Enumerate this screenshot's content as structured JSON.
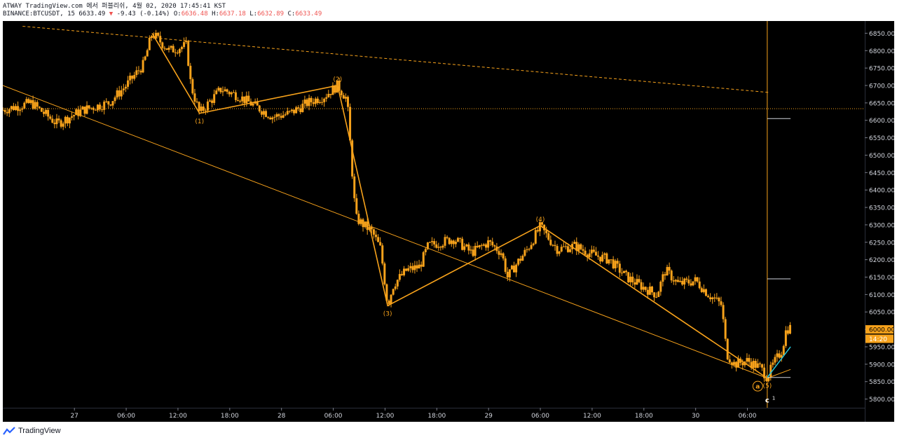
{
  "header": {
    "line1": "ATWAY TradingView.com 에서 퍼블리쉬, 4월 02, 2020 17:45:41 KST",
    "symbol": "BINANCE:BTCUSDT, 15",
    "last": "6633.49",
    "change": "-9.43 (-0.14%)",
    "o_label": "O:",
    "o_val": "6636.48",
    "h_label": "H:",
    "h_val": "6637.18",
    "l_label": "L:",
    "l_val": "6632.89",
    "c_label": "C:",
    "c_val": "6633.49"
  },
  "footer": {
    "brand": "TradingView"
  },
  "colors": {
    "background": "#000000",
    "up": "#f7a21b",
    "down": "#f7a21b",
    "wave": "#f7a21b",
    "axis_bg": "#000000",
    "accent_teal": "#26c6da"
  },
  "chart_data": {
    "type": "candlestick",
    "title": "",
    "ylim": [
      5775,
      6885
    ],
    "y_ticks": [
      5800,
      5850,
      5900,
      5950,
      6000,
      6050,
      6100,
      6150,
      6200,
      6250,
      6300,
      6350,
      6400,
      6450,
      6500,
      6550,
      6600,
      6650,
      6700,
      6750,
      6800,
      6850
    ],
    "y_tick_labels": [
      "5800.00",
      "5850.00",
      "5900.00",
      "5950.00",
      "6000.00",
      "6050.00",
      "6100.00",
      "6150.00",
      "6200.00",
      "6250.00",
      "6300.00",
      "6350.00",
      "6400.00",
      "6450.00",
      "6500.00",
      "6550.00",
      "6600.00",
      "6650.00",
      "6700.00",
      "6750.00",
      "6800.00",
      "6850.00"
    ],
    "x_range_hours": [
      -8.3,
      91.6
    ],
    "x_ticks": [
      {
        "h": 0,
        "label": "27"
      },
      {
        "h": 6,
        "label": "06:00"
      },
      {
        "h": 12,
        "label": "12:00"
      },
      {
        "h": 18,
        "label": "18:00"
      },
      {
        "h": 24,
        "label": "28"
      },
      {
        "h": 30,
        "label": "06:00"
      },
      {
        "h": 36,
        "label": "12:00"
      },
      {
        "h": 42,
        "label": "18:00"
      },
      {
        "h": 48,
        "label": "29"
      },
      {
        "h": 54,
        "label": "06:00"
      },
      {
        "h": 60,
        "label": "12:00"
      },
      {
        "h": 66,
        "label": "18:00"
      },
      {
        "h": 72,
        "label": "30"
      },
      {
        "h": 78,
        "label": "06:00"
      }
    ],
    "price_path": [
      {
        "h": -8.3,
        "p": 6630
      },
      {
        "h": -5,
        "p": 6650
      },
      {
        "h": -2,
        "p": 6590
      },
      {
        "h": 1,
        "p": 6630
      },
      {
        "h": 4,
        "p": 6650
      },
      {
        "h": 6,
        "p": 6700
      },
      {
        "h": 8,
        "p": 6760
      },
      {
        "h": 9,
        "p": 6850
      },
      {
        "h": 11,
        "p": 6800
      },
      {
        "h": 13,
        "p": 6815
      },
      {
        "h": 13.5,
        "p": 6700
      },
      {
        "h": 14.5,
        "p": 6620
      },
      {
        "h": 17,
        "p": 6690
      },
      {
        "h": 19,
        "p": 6670
      },
      {
        "h": 21,
        "p": 6640
      },
      {
        "h": 23,
        "p": 6610
      },
      {
        "h": 25,
        "p": 6620
      },
      {
        "h": 27,
        "p": 6650
      },
      {
        "h": 29,
        "p": 6670
      },
      {
        "h": 30.5,
        "p": 6700
      },
      {
        "h": 31.6,
        "p": 6660
      },
      {
        "h": 32.2,
        "p": 6450
      },
      {
        "h": 32.6,
        "p": 6320
      },
      {
        "h": 33.5,
        "p": 6300
      },
      {
        "h": 34.5,
        "p": 6280
      },
      {
        "h": 35.5,
        "p": 6230
      },
      {
        "h": 36.3,
        "p": 6070
      },
      {
        "h": 37,
        "p": 6130
      },
      {
        "h": 38.5,
        "p": 6170
      },
      {
        "h": 40,
        "p": 6180
      },
      {
        "h": 41,
        "p": 6240
      },
      {
        "h": 42.5,
        "p": 6250
      },
      {
        "h": 44,
        "p": 6260
      },
      {
        "h": 46,
        "p": 6220
      },
      {
        "h": 48,
        "p": 6250
      },
      {
        "h": 49.5,
        "p": 6220
      },
      {
        "h": 50.2,
        "p": 6150
      },
      {
        "h": 51,
        "p": 6180
      },
      {
        "h": 52.5,
        "p": 6230
      },
      {
        "h": 54,
        "p": 6295
      },
      {
        "h": 55,
        "p": 6260
      },
      {
        "h": 56,
        "p": 6230
      },
      {
        "h": 58,
        "p": 6240
      },
      {
        "h": 60,
        "p": 6215
      },
      {
        "h": 62,
        "p": 6200
      },
      {
        "h": 64,
        "p": 6150
      },
      {
        "h": 66,
        "p": 6120
      },
      {
        "h": 67.5,
        "p": 6100
      },
      {
        "h": 68.5,
        "p": 6170
      },
      {
        "h": 70,
        "p": 6130
      },
      {
        "h": 72,
        "p": 6140
      },
      {
        "h": 73.5,
        "p": 6100
      },
      {
        "h": 75,
        "p": 6070
      },
      {
        "h": 75.6,
        "p": 5930
      },
      {
        "h": 76.5,
        "p": 5900
      },
      {
        "h": 78,
        "p": 5910
      },
      {
        "h": 79.5,
        "p": 5890
      },
      {
        "h": 80.3,
        "p": 5862
      },
      {
        "h": 81,
        "p": 5900
      },
      {
        "h": 82,
        "p": 5940
      },
      {
        "h": 82.5,
        "p": 6000
      },
      {
        "h": 83,
        "p": 6005
      }
    ],
    "wave_points": [
      {
        "label": "",
        "h": 9,
        "p": 6850
      },
      {
        "label": "(1)",
        "h": 14.5,
        "p": 6620
      },
      {
        "label": "(2)",
        "h": 30.5,
        "p": 6700
      },
      {
        "label": "(3)",
        "h": 36.3,
        "p": 6068
      },
      {
        "label": "(4)",
        "h": 54,
        "p": 6298
      },
      {
        "label": "(5)",
        "h": 80.3,
        "p": 5860
      }
    ],
    "trendlines": [
      {
        "style": "solid",
        "from": {
          "h": -8.3,
          "p": 6700
        },
        "to": {
          "h": 80.3,
          "p": 5860
        }
      },
      {
        "style": "dashed",
        "from": {
          "h": -6,
          "p": 6870
        },
        "to": {
          "h": 80.5,
          "p": 6680
        }
      },
      {
        "style": "solid",
        "from": {
          "h": 80.3,
          "p": 5860
        },
        "to": {
          "h": 83,
          "p": 5885
        }
      }
    ],
    "horizontal_lines": [
      {
        "style": "dotted",
        "p": 6633.49
      }
    ],
    "marker_segments": [
      {
        "p": 6605,
        "h_from": 80.3,
        "h_to": 83
      },
      {
        "p": 6145,
        "h_from": 80.3,
        "h_to": 83
      },
      {
        "p": 5862,
        "h_from": 80.3,
        "h_to": 83
      }
    ],
    "vertical_line_h": 80.3,
    "circle_a": {
      "label": "a",
      "h": 79.2,
      "p": 5837
    },
    "c_mark": {
      "label": "c",
      "sub": "1",
      "h": 80.3,
      "p": 5790
    },
    "price_labels": [
      {
        "p": 6000,
        "text": "6000.00"
      },
      {
        "p": 5973,
        "text": "14:20"
      }
    ],
    "teal_line": {
      "from": {
        "h": 80.3,
        "p": 5862
      },
      "to": {
        "h": 83,
        "p": 5950
      }
    }
  }
}
